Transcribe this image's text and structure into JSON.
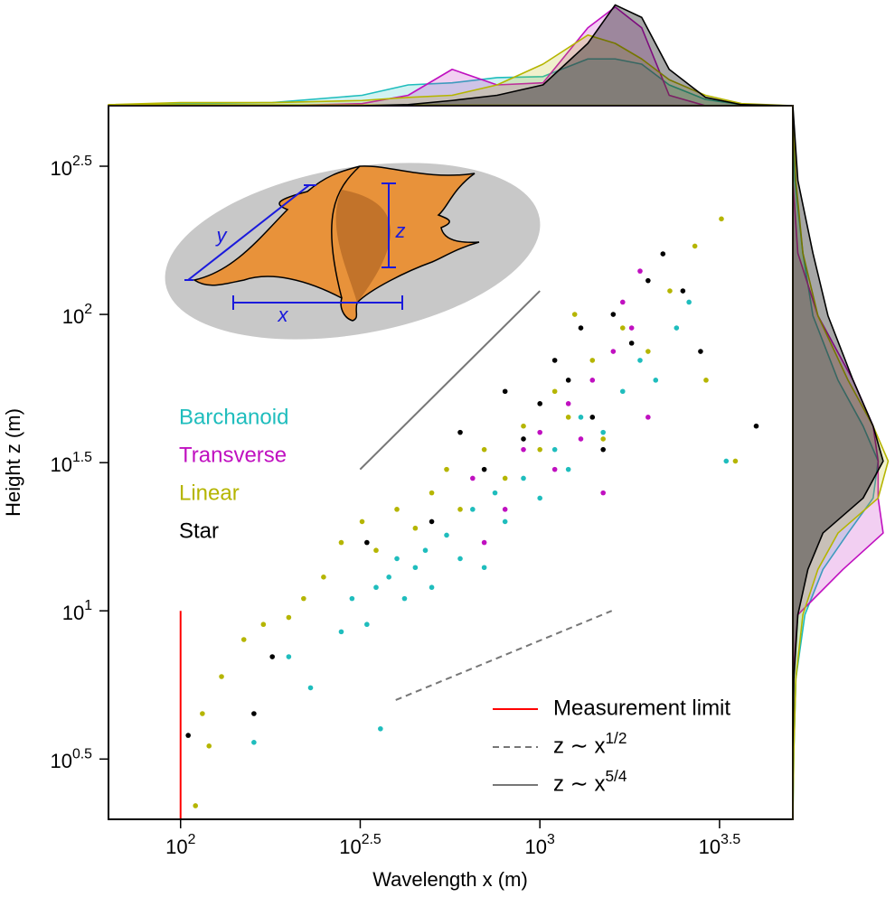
{
  "chart_data": [
    {
      "type": "scatter",
      "xscale": "log",
      "yscale": "log",
      "xlabel": "Wavelength x (m)",
      "ylabel": "Height z (m)",
      "xlim": [
        63,
        5058
      ],
      "ylim": [
        1.98,
        506
      ],
      "xticks": [
        {
          "value": 100,
          "label": "10^2"
        },
        {
          "value": 316.2,
          "label": "10^2.5"
        },
        {
          "value": 1000,
          "label": "10^3"
        },
        {
          "value": 3162,
          "label": "10^3.5"
        }
      ],
      "yticks": [
        {
          "value": 3.162,
          "label": "10^0.5"
        },
        {
          "value": 10,
          "label": "10^1"
        },
        {
          "value": 31.62,
          "label": "10^1.5"
        },
        {
          "value": 100,
          "label": "10^2"
        },
        {
          "value": 316.2,
          "label": "10^2.5"
        }
      ],
      "annotations": [
        "y",
        "z",
        "x"
      ],
      "series": [
        {
          "name": "Barchanoid",
          "color": "#1fbdbd",
          "x": [
            160,
            200,
            230,
            280,
            300,
            330,
            350,
            380,
            400,
            420,
            450,
            480,
            500,
            550,
            600,
            650,
            700,
            750,
            800,
            900,
            1000,
            1100,
            1200,
            1300,
            1500,
            1700,
            1900,
            2100,
            2400,
            2600,
            3300,
            360
          ],
          "values": [
            3.6,
            7,
            5.5,
            8.5,
            11,
            9,
            12,
            13,
            15,
            11,
            14,
            16,
            12,
            18,
            15,
            22,
            14,
            25,
            20,
            28,
            24,
            35,
            30,
            45,
            40,
            55,
            70,
            60,
            90,
            110,
            32,
            4
          ]
        },
        {
          "name": "Transverse",
          "color": "#c010c0",
          "x": [
            650,
            800,
            900,
            1000,
            1100,
            1200,
            1300,
            1400,
            1600,
            1800,
            2000,
            1500,
            700,
            1700,
            1900
          ],
          "values": [
            28,
            22,
            35,
            40,
            30,
            50,
            38,
            60,
            75,
            90,
            45,
            25,
            17,
            110,
            140
          ]
        },
        {
          "name": "Linear",
          "color": "#b5b500",
          "x": [
            110,
            120,
            115,
            130,
            150,
            170,
            200,
            220,
            250,
            280,
            320,
            350,
            400,
            450,
            500,
            550,
            600,
            700,
            800,
            900,
            1000,
            1100,
            1200,
            1400,
            1500,
            1700,
            2000,
            2300,
            2700,
            3200,
            3500,
            2900,
            1250
          ],
          "values": [
            2.2,
            3.5,
            4.5,
            6,
            8,
            9,
            9.5,
            11,
            13,
            17,
            20,
            16,
            22,
            19,
            25,
            30,
            22,
            35,
            28,
            42,
            35,
            55,
            45,
            70,
            38,
            90,
            75,
            120,
            170,
            210,
            32,
            60,
            100
          ]
        },
        {
          "name": "Star",
          "color": "#000000",
          "x": [
            105,
            160,
            180,
            330,
            500,
            600,
            700,
            800,
            900,
            1000,
            1100,
            1200,
            1300,
            1400,
            1600,
            1800,
            2000,
            2200,
            2500,
            2800,
            4000,
            1500
          ],
          "values": [
            3.8,
            4.5,
            7,
            17,
            20,
            40,
            30,
            55,
            38,
            50,
            70,
            60,
            90,
            45,
            100,
            80,
            130,
            160,
            120,
            75,
            42,
            35
          ]
        }
      ],
      "reference_lines": [
        {
          "name": "Measurement limit",
          "color": "#ff0000",
          "dash": false,
          "x": [
            100,
            100
          ],
          "values": [
            1.98,
            10
          ]
        },
        {
          "name": "z ∼ x^1/2",
          "color": "#777777",
          "dash": true,
          "x": [
            397,
            1585
          ],
          "values": [
            5.0,
            10.0
          ]
        },
        {
          "name": "z ∼ x^5/4",
          "color": "#777777",
          "dash": false,
          "x": [
            316,
            1000
          ],
          "values": [
            30,
            120
          ]
        }
      ]
    },
    {
      "type": "area",
      "orientation": "horizontal",
      "xscale": "log",
      "xlim": [
        63,
        5058
      ],
      "ylim": [
        0,
        1
      ],
      "x": [
        63,
        100,
        180,
        320,
        430,
        570,
        760,
        1020,
        1360,
        1620,
        1920,
        2290,
        2890,
        3640,
        5060
      ],
      "series": [
        {
          "name": "Barchanoid",
          "color": "#1fbdbd",
          "values": [
            0,
            0.02,
            0.03,
            0.1,
            0.2,
            0.22,
            0.27,
            0.28,
            0.45,
            0.45,
            0.4,
            0.2,
            0.06,
            0.01,
            0
          ]
        },
        {
          "name": "Transverse",
          "color": "#c010c0",
          "values": [
            0,
            0,
            0,
            0.02,
            0.1,
            0.35,
            0.2,
            0.22,
            0.75,
            0.95,
            0.75,
            0.1,
            0,
            0,
            0
          ]
        },
        {
          "name": "Linear",
          "color": "#b5b500",
          "values": [
            0.01,
            0.03,
            0.03,
            0.05,
            0.08,
            0.1,
            0.2,
            0.4,
            0.68,
            0.6,
            0.45,
            0.25,
            0.1,
            0.02,
            0
          ]
        },
        {
          "name": "Star",
          "color": "#000000",
          "values": [
            0,
            0,
            0,
            0,
            0.01,
            0.05,
            0.1,
            0.2,
            0.6,
            0.97,
            0.85,
            0.35,
            0.08,
            0.01,
            0
          ]
        }
      ]
    },
    {
      "type": "area",
      "orientation": "vertical",
      "yscale": "log",
      "ylim": [
        1.98,
        506
      ],
      "xlim": [
        0,
        1
      ],
      "y": [
        506,
        283,
        161,
        99,
        60,
        42,
        32,
        24,
        18.3,
        13.8,
        9.7,
        5.9,
        3.4,
        1.98
      ],
      "series": [
        {
          "name": "Barchanoid",
          "color": "#1fbdbd",
          "values": [
            0,
            0.02,
            0.1,
            0.2,
            0.45,
            0.7,
            0.85,
            0.8,
            0.55,
            0.3,
            0.12,
            0.03,
            0.01,
            0
          ]
        },
        {
          "name": "Transverse",
          "color": "#c010c0",
          "values": [
            0,
            0,
            0.05,
            0.25,
            0.6,
            0.8,
            0.85,
            0.85,
            0.9,
            0.5,
            0.05,
            0,
            0,
            0
          ]
        },
        {
          "name": "Linear",
          "color": "#b5b500",
          "values": [
            0,
            0.03,
            0.1,
            0.25,
            0.55,
            0.8,
            0.95,
            0.85,
            0.45,
            0.25,
            0.1,
            0.03,
            0.01,
            0
          ]
        },
        {
          "name": "Star",
          "color": "#000000",
          "values": [
            0,
            0.05,
            0.2,
            0.35,
            0.6,
            0.8,
            0.9,
            0.7,
            0.3,
            0.15,
            0.05,
            0.01,
            0,
            0
          ]
        }
      ]
    }
  ]
}
